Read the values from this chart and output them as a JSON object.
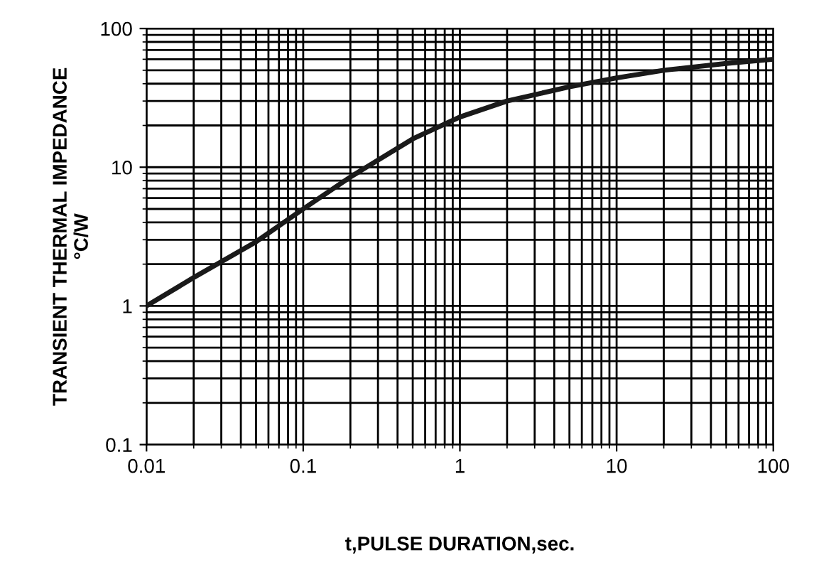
{
  "chart_data": {
    "type": "line",
    "xlabel": "t,PULSE DURATION,sec.",
    "ylabel": "TRANSIENT THERMAL IMPEDANCE\n°C/W",
    "log": "xy",
    "xlim": [
      0.01,
      100
    ],
    "ylim": [
      0.1,
      100
    ],
    "xticks": [
      0.01,
      0.1,
      1,
      10,
      100
    ],
    "yticks": [
      0.1,
      1,
      10,
      100
    ],
    "grid": true,
    "marker": "none",
    "line_style": "solid",
    "series": [
      {
        "color": "#1a1a1a",
        "x": [
          0.01,
          0.02,
          0.05,
          0.1,
          0.2,
          0.5,
          1,
          2,
          5,
          10,
          20,
          50,
          100
        ],
        "values": [
          1.0,
          1.6,
          2.9,
          5,
          8.5,
          16,
          23,
          30,
          38,
          44,
          50,
          56,
          60
        ]
      }
    ]
  }
}
